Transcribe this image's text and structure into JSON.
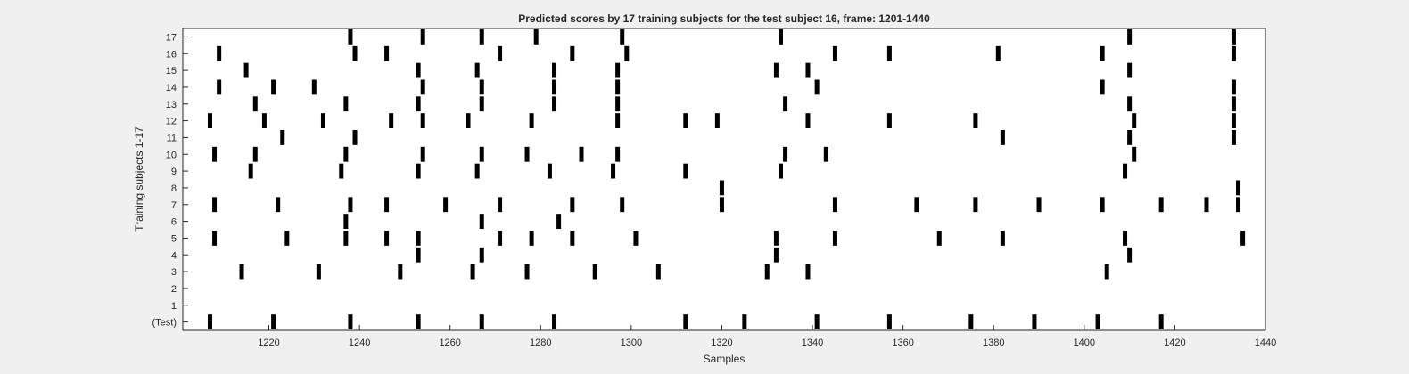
{
  "chart_data": {
    "type": "raster",
    "title": "Predicted scores by 17 training subjects for the test subject 16, frame: 1201-1440",
    "xlabel": "Samples",
    "ylabel": "Training subjects 1-17",
    "xlim": [
      1201,
      1440
    ],
    "xticks": [
      1220,
      1240,
      1260,
      1280,
      1300,
      1320,
      1340,
      1360,
      1380,
      1400,
      1420,
      1440
    ],
    "yticklabels": [
      "(Test)",
      "1",
      "2",
      "3",
      "4",
      "5",
      "6",
      "7",
      "8",
      "9",
      "10",
      "11",
      "12",
      "13",
      "14",
      "15",
      "16",
      "17"
    ],
    "grid": false,
    "colors": {
      "background": "#f0f0f0",
      "axes": "#ffffff",
      "marks": "#000000",
      "text": "#262626"
    },
    "series": [
      {
        "row": "(Test)",
        "events": [
          1207,
          1221,
          1238,
          1253,
          1267,
          1283,
          1312,
          1325,
          1341,
          1357,
          1375,
          1389,
          1403,
          1417
        ]
      },
      {
        "row": "1",
        "events": []
      },
      {
        "row": "2",
        "events": []
      },
      {
        "row": "3",
        "events": [
          1214,
          1231,
          1249,
          1265,
          1277,
          1292,
          1306,
          1330,
          1339,
          1405
        ]
      },
      {
        "row": "4",
        "events": [
          1253,
          1267,
          1332,
          1410
        ]
      },
      {
        "row": "5",
        "events": [
          1208,
          1224,
          1237,
          1246,
          1253,
          1271,
          1278,
          1287,
          1301,
          1332,
          1345,
          1368,
          1382,
          1409,
          1435
        ]
      },
      {
        "row": "6",
        "events": [
          1237,
          1267,
          1284
        ]
      },
      {
        "row": "7",
        "events": [
          1208,
          1222,
          1238,
          1246,
          1259,
          1271,
          1287,
          1298,
          1320,
          1345,
          1363,
          1376,
          1390,
          1404,
          1417,
          1427,
          1434
        ]
      },
      {
        "row": "8",
        "events": [
          1320,
          1434
        ]
      },
      {
        "row": "9",
        "events": [
          1216,
          1236,
          1253,
          1266,
          1282,
          1296,
          1312,
          1333,
          1409
        ]
      },
      {
        "row": "10",
        "events": [
          1208,
          1217,
          1237,
          1254,
          1267,
          1277,
          1289,
          1297,
          1334,
          1343,
          1411
        ]
      },
      {
        "row": "11",
        "events": [
          1223,
          1239,
          1382,
          1410,
          1433
        ]
      },
      {
        "row": "12",
        "events": [
          1207,
          1219,
          1232,
          1247,
          1254,
          1264,
          1278,
          1297,
          1312,
          1319,
          1339,
          1357,
          1376,
          1411,
          1433
        ]
      },
      {
        "row": "13",
        "events": [
          1217,
          1237,
          1253,
          1267,
          1283,
          1297,
          1334,
          1410,
          1433
        ]
      },
      {
        "row": "14",
        "events": [
          1209,
          1221,
          1230,
          1254,
          1267,
          1283,
          1297,
          1341,
          1404,
          1433
        ]
      },
      {
        "row": "15",
        "events": [
          1215,
          1253,
          1266,
          1283,
          1297,
          1332,
          1339,
          1410
        ]
      },
      {
        "row": "16",
        "events": [
          1209,
          1239,
          1246,
          1271,
          1287,
          1299,
          1345,
          1357,
          1381,
          1404,
          1433
        ]
      },
      {
        "row": "17",
        "events": [
          1238,
          1254,
          1267,
          1279,
          1298,
          1333,
          1410,
          1433
        ]
      }
    ]
  }
}
